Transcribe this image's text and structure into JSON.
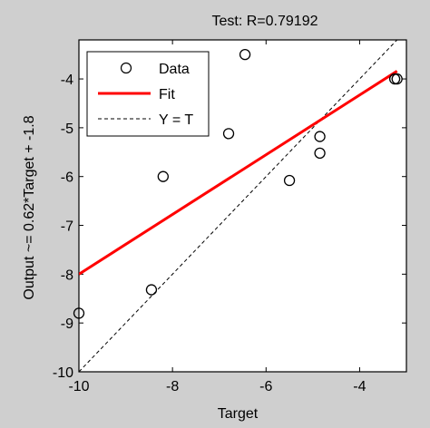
{
  "chart_data": {
    "type": "scatter",
    "title": "Test: R=0.79192",
    "xlabel": "Target",
    "ylabel": "Output ~= 0.62*Target + -1.8",
    "xlim": [
      -10,
      -3
    ],
    "ylim": [
      -10,
      -3.2
    ],
    "xticks": [
      -10,
      -8,
      -6,
      -4
    ],
    "yticks": [
      -10,
      -9,
      -8,
      -7,
      -6,
      -5,
      -4
    ],
    "grid": false,
    "legend_position": "top-left",
    "series": [
      {
        "name": "Data",
        "kind": "markers",
        "color": "#000000",
        "points": [
          {
            "x": -10.0,
            "y": -8.8
          },
          {
            "x": -8.45,
            "y": -8.32
          },
          {
            "x": -8.2,
            "y": -6.0
          },
          {
            "x": -6.8,
            "y": -5.12
          },
          {
            "x": -6.45,
            "y": -3.5
          },
          {
            "x": -5.5,
            "y": -6.08
          },
          {
            "x": -4.85,
            "y": -5.18
          },
          {
            "x": -4.85,
            "y": -5.52
          },
          {
            "x": -3.25,
            "y": -4.0
          },
          {
            "x": -3.2,
            "y": -4.0
          }
        ]
      },
      {
        "name": "Fit",
        "kind": "line",
        "color": "#ff0000",
        "x": [
          -10,
          -3.2
        ],
        "y": [
          -8.0,
          -3.84
        ]
      },
      {
        "name": "Y = T",
        "kind": "dashed-line",
        "color": "#000000",
        "x": [
          -10,
          -3.1
        ],
        "y": [
          -10,
          -3.1
        ]
      }
    ]
  }
}
